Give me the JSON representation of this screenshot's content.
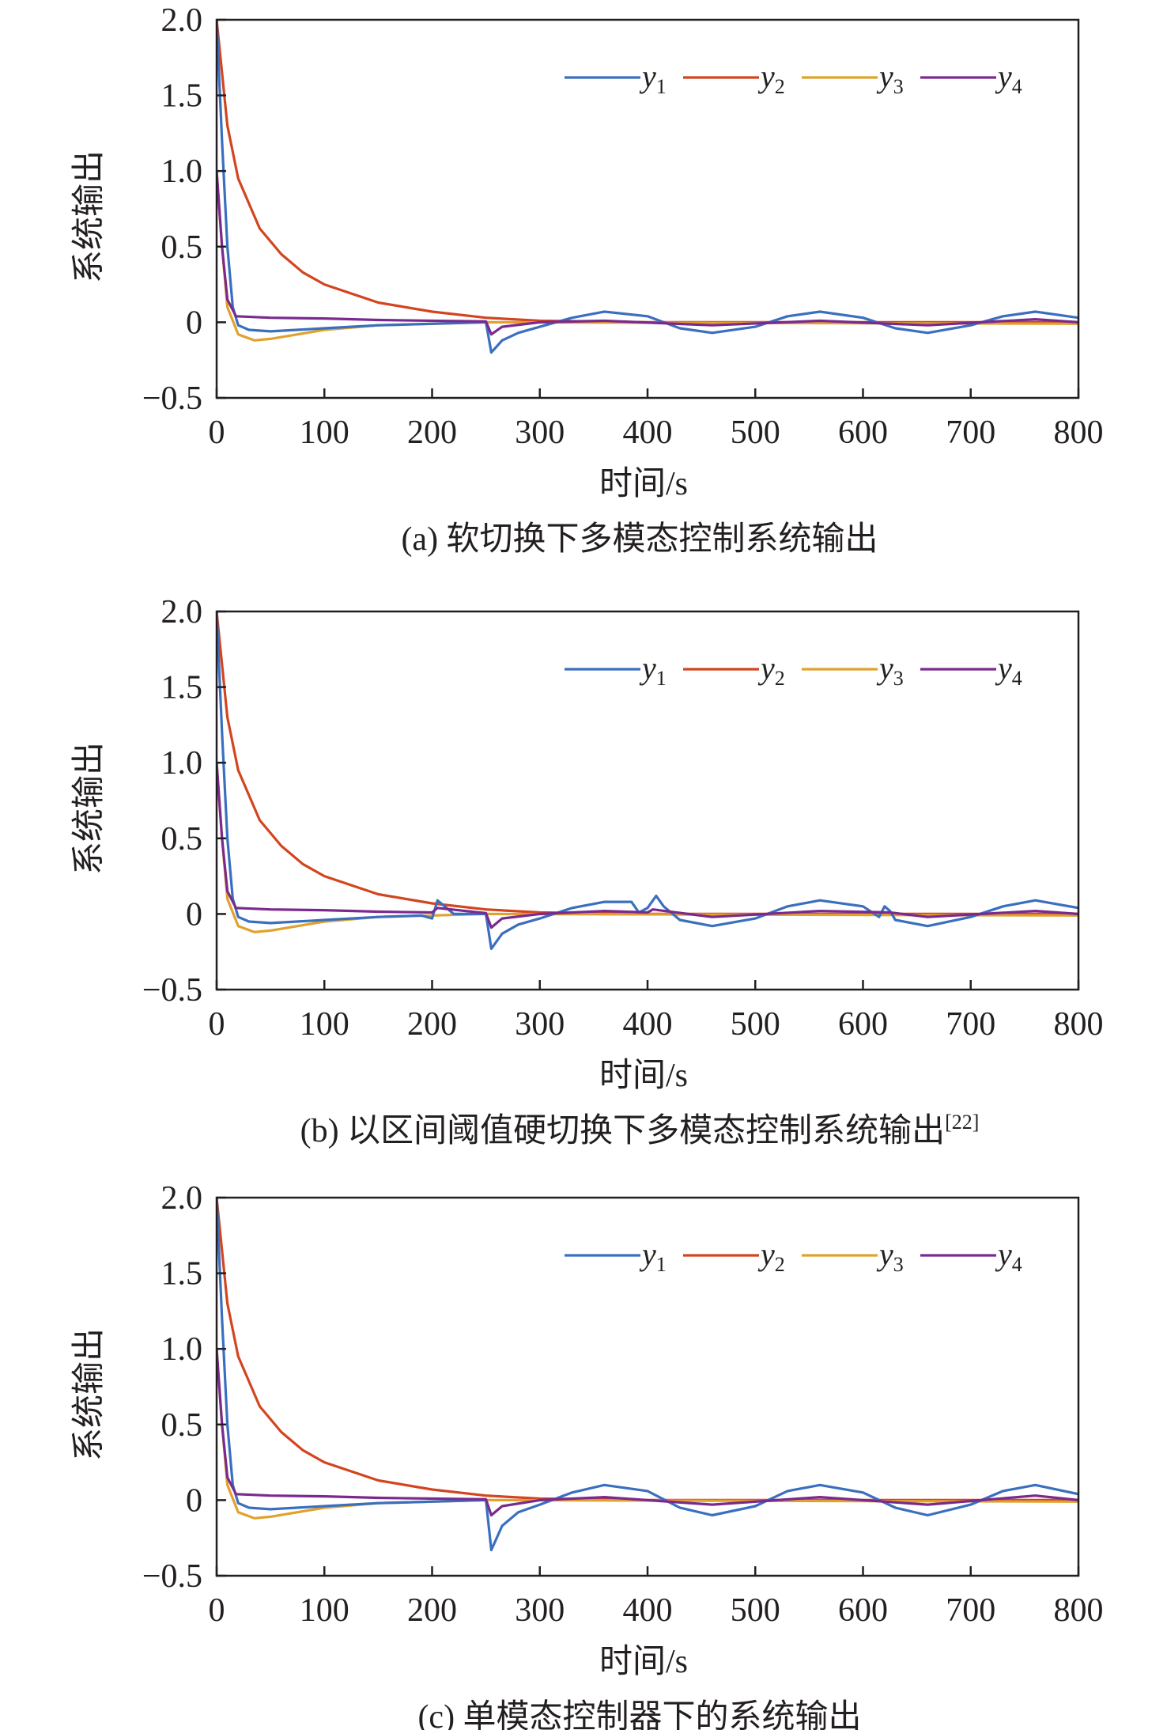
{
  "legend": [
    {
      "name": "y",
      "sub": "1"
    },
    {
      "name": "y",
      "sub": "2"
    },
    {
      "name": "y",
      "sub": "3"
    },
    {
      "name": "y",
      "sub": "4"
    }
  ],
  "colors": {
    "y1": "#3a6fbf",
    "y2": "#d2451e",
    "y3": "#e0a22c",
    "y4": "#7a2a8f"
  },
  "chart_data": [
    {
      "type": "line",
      "caption": "(a) 软切换下多模态控制系统输出",
      "caption_ref": "",
      "xlabel": "时间/s",
      "ylabel": "系统输出",
      "xlim": [
        0,
        800
      ],
      "ylim": [
        -0.5,
        2.0
      ],
      "xticks": [
        "0",
        "100",
        "200",
        "300",
        "400",
        "500",
        "600",
        "700",
        "800"
      ],
      "yticks": [
        "−0.5",
        "0",
        "0.5",
        "1.0",
        "1.5",
        "2.0"
      ],
      "series": [
        {
          "name": "y1",
          "x": [
            0,
            5,
            10,
            15,
            20,
            30,
            50,
            100,
            150,
            200,
            250,
            255,
            265,
            280,
            300,
            330,
            360,
            400,
            430,
            460,
            500,
            530,
            560,
            600,
            630,
            660,
            700,
            730,
            760,
            800
          ],
          "y": [
            2.0,
            1.2,
            0.5,
            0.1,
            -0.02,
            -0.05,
            -0.06,
            -0.04,
            -0.02,
            -0.01,
            0,
            -0.2,
            -0.12,
            -0.07,
            -0.03,
            0.03,
            0.07,
            0.04,
            -0.04,
            -0.07,
            -0.03,
            0.04,
            0.07,
            0.03,
            -0.04,
            -0.07,
            -0.02,
            0.04,
            0.07,
            0.03
          ]
        },
        {
          "name": "y2",
          "x": [
            0,
            10,
            20,
            40,
            60,
            80,
            100,
            150,
            200,
            250,
            300,
            400,
            800
          ],
          "y": [
            2.0,
            1.3,
            0.95,
            0.62,
            0.45,
            0.33,
            0.25,
            0.13,
            0.07,
            0.03,
            0.01,
            0,
            0
          ]
        },
        {
          "name": "y3",
          "x": [
            0,
            5,
            10,
            20,
            35,
            50,
            100,
            150,
            200,
            250,
            800
          ],
          "y": [
            1.0,
            0.5,
            0.1,
            -0.08,
            -0.12,
            -0.11,
            -0.05,
            -0.02,
            -0.01,
            0,
            -0.01
          ]
        },
        {
          "name": "y4",
          "x": [
            0,
            5,
            10,
            18,
            50,
            100,
            150,
            250,
            255,
            265,
            300,
            360,
            460,
            560,
            660,
            760,
            800
          ],
          "y": [
            1.0,
            0.5,
            0.15,
            0.04,
            0.03,
            0.025,
            0.015,
            0.005,
            -0.08,
            -0.03,
            0,
            0.01,
            -0.02,
            0.01,
            -0.02,
            0.02,
            0
          ]
        }
      ]
    },
    {
      "type": "line",
      "caption": "(b) 以区间阈值硬切换下多模态控制系统输出",
      "caption_ref": "[22]",
      "xlabel": "时间/s",
      "ylabel": "系统输出",
      "xlim": [
        0,
        800
      ],
      "ylim": [
        -0.5,
        2.0
      ],
      "xticks": [
        "0",
        "100",
        "200",
        "300",
        "400",
        "500",
        "600",
        "700",
        "800"
      ],
      "yticks": [
        "−0.5",
        "0",
        "0.5",
        "1.0",
        "1.5",
        "2.0"
      ],
      "series": [
        {
          "name": "y1",
          "x": [
            0,
            5,
            10,
            15,
            20,
            30,
            50,
            100,
            150,
            190,
            200,
            205,
            210,
            220,
            250,
            255,
            265,
            280,
            300,
            330,
            360,
            385,
            392,
            400,
            408,
            415,
            430,
            460,
            500,
            530,
            560,
            600,
            615,
            620,
            625,
            630,
            660,
            700,
            730,
            760,
            800
          ],
          "y": [
            2.0,
            1.2,
            0.5,
            0.1,
            -0.02,
            -0.05,
            -0.06,
            -0.04,
            -0.02,
            -0.01,
            -0.03,
            0.09,
            0.06,
            0.0,
            0,
            -0.23,
            -0.13,
            -0.07,
            -0.03,
            0.04,
            0.08,
            0.08,
            0.01,
            0.04,
            0.12,
            0.05,
            -0.04,
            -0.08,
            -0.03,
            0.05,
            0.09,
            0.05,
            -0.02,
            0.05,
            0.02,
            -0.04,
            -0.08,
            -0.02,
            0.05,
            0.09,
            0.04
          ]
        },
        {
          "name": "y2",
          "x": [
            0,
            10,
            20,
            40,
            60,
            80,
            100,
            150,
            200,
            250,
            300,
            400,
            800
          ],
          "y": [
            2.0,
            1.3,
            0.95,
            0.62,
            0.45,
            0.33,
            0.25,
            0.13,
            0.07,
            0.03,
            0.01,
            0,
            0
          ]
        },
        {
          "name": "y3",
          "x": [
            0,
            5,
            10,
            20,
            35,
            50,
            100,
            150,
            200,
            250,
            800
          ],
          "y": [
            1.0,
            0.5,
            0.1,
            -0.08,
            -0.12,
            -0.11,
            -0.05,
            -0.02,
            -0.01,
            0,
            -0.01
          ]
        },
        {
          "name": "y4",
          "x": [
            0,
            5,
            10,
            18,
            50,
            100,
            150,
            200,
            205,
            250,
            255,
            265,
            300,
            360,
            400,
            405,
            460,
            560,
            625,
            660,
            760,
            800
          ],
          "y": [
            1.0,
            0.5,
            0.15,
            0.04,
            0.03,
            0.025,
            0.015,
            0.01,
            0.04,
            0.005,
            -0.09,
            -0.03,
            0,
            0.02,
            0.01,
            0.03,
            -0.02,
            0.02,
            0.01,
            -0.02,
            0.02,
            0
          ]
        }
      ]
    },
    {
      "type": "line",
      "caption": "(c) 单模态控制器下的系统输出",
      "caption_ref": "",
      "xlabel": "时间/s",
      "ylabel": "系统输出",
      "xlim": [
        0,
        800
      ],
      "ylim": [
        -0.5,
        2.0
      ],
      "xticks": [
        "0",
        "100",
        "200",
        "300",
        "400",
        "500",
        "600",
        "700",
        "800"
      ],
      "yticks": [
        "−0.5",
        "0",
        "0.5",
        "1.0",
        "1.5",
        "2.0"
      ],
      "series": [
        {
          "name": "y1",
          "x": [
            0,
            5,
            10,
            15,
            20,
            30,
            50,
            100,
            150,
            200,
            250,
            255,
            265,
            280,
            300,
            330,
            360,
            400,
            430,
            460,
            500,
            530,
            560,
            600,
            630,
            660,
            700,
            730,
            760,
            800
          ],
          "y": [
            2.0,
            1.2,
            0.5,
            0.1,
            -0.02,
            -0.05,
            -0.06,
            -0.04,
            -0.02,
            -0.01,
            0,
            -0.33,
            -0.17,
            -0.08,
            -0.03,
            0.05,
            0.1,
            0.06,
            -0.05,
            -0.1,
            -0.04,
            0.06,
            0.1,
            0.05,
            -0.05,
            -0.1,
            -0.03,
            0.06,
            0.1,
            0.04
          ]
        },
        {
          "name": "y2",
          "x": [
            0,
            10,
            20,
            40,
            60,
            80,
            100,
            150,
            200,
            250,
            300,
            400,
            800
          ],
          "y": [
            2.0,
            1.3,
            0.95,
            0.62,
            0.45,
            0.33,
            0.25,
            0.13,
            0.07,
            0.03,
            0.01,
            0,
            0
          ]
        },
        {
          "name": "y3",
          "x": [
            0,
            5,
            10,
            20,
            35,
            50,
            100,
            150,
            200,
            250,
            800
          ],
          "y": [
            1.0,
            0.5,
            0.1,
            -0.08,
            -0.12,
            -0.11,
            -0.05,
            -0.02,
            -0.01,
            0,
            -0.01
          ]
        },
        {
          "name": "y4",
          "x": [
            0,
            5,
            10,
            18,
            50,
            100,
            150,
            250,
            255,
            265,
            300,
            360,
            460,
            560,
            660,
            760,
            800
          ],
          "y": [
            1.0,
            0.5,
            0.15,
            0.04,
            0.03,
            0.025,
            0.015,
            0.005,
            -0.1,
            -0.04,
            0,
            0.02,
            -0.03,
            0.02,
            -0.03,
            0.03,
            0
          ]
        }
      ]
    }
  ]
}
